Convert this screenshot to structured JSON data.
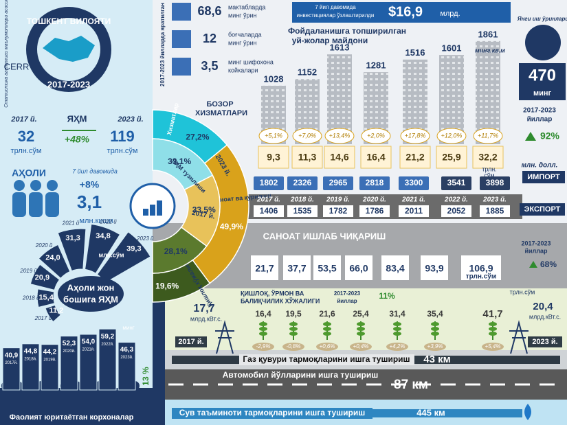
{
  "left": {
    "title": "ТОШКЕНТ ВИЛОЯТИ",
    "period": "2017-2023",
    "logo": "CERR",
    "source": "Статистика агентлиги маълумотлари асосида",
    "grp": {
      "label": "ЯҲМ",
      "year_start": "2017 й.",
      "year_end": "2023 й.",
      "value_start": "32",
      "unit_start": "трлн.сўм",
      "growth": "+48%",
      "value_end": "119",
      "unit_end": "трлн.сўм"
    },
    "population": {
      "label": "АҲОЛИ",
      "note": "7 йил давомида",
      "growth": "+8%",
      "value": "3,1",
      "unit": "млн.киши"
    },
    "per_capita": {
      "title": [
        "Аҳоли жон",
        "бошига ЯҲМ"
      ],
      "unit": "млн.сўм",
      "years": [
        "2017 й",
        "2018 й",
        "2019 й",
        "2020 й",
        "2021 й",
        "2022 й",
        "2023 й"
      ],
      "values": [
        {
          "value": 11.2,
          "label": "11,2"
        },
        {
          "value": 15.4,
          "label": "15,4"
        },
        {
          "value": 20.9,
          "label": "20,9"
        },
        {
          "value": 24.0,
          "label": "24,0"
        },
        {
          "value": 31.3,
          "label": "31,3"
        },
        {
          "value": 34.8,
          "label": "34,8"
        },
        {
          "value": 39.3,
          "label": "39,3"
        }
      ]
    },
    "enterprises": {
      "title": "Фаолият юритаётган корхоналар",
      "unit": "минг",
      "growth": "13 %",
      "years": [
        "2017й.",
        "2018й.",
        "2019й.",
        "2020й.",
        "2021й.",
        "2022й.",
        "2023й."
      ],
      "values": [
        {
          "value": 40.9,
          "label": "40,9"
        },
        {
          "value": 44.8,
          "label": "44,8"
        },
        {
          "value": 44.2,
          "label": "44,2"
        },
        {
          "value": 52.3,
          "label": "52,3"
        },
        {
          "value": 54.0,
          "label": "54,0"
        },
        {
          "value": 59.2,
          "label": "59,2"
        },
        {
          "value": 46.3,
          "label": "46,3"
        }
      ]
    }
  },
  "structure": {
    "title": "ЯҲМ тузилиши",
    "outer_label": "2023 й.",
    "inner_label": "2017 й.",
    "categories": [
      "Хизматлар",
      "Саноат ва қурилиш",
      "Қишлоқ хўжалиги"
    ],
    "y2023": [
      {
        "value": 27.2,
        "label": "27,2%"
      },
      {
        "value": 49.9,
        "label": "49,9%"
      },
      {
        "value": 19.6,
        "label": "19,6%"
      }
    ],
    "y2017": [
      {
        "value": 33.1,
        "label": "33,1%"
      },
      {
        "value": 33.5,
        "label": "33,5%"
      },
      {
        "value": 28.1,
        "label": "28,1%"
      }
    ]
  },
  "social": {
    "note": "2017-2023 йилларда яратилган",
    "items": [
      {
        "value": "68,6",
        "text": [
          "мактабларда",
          "минг ўрин"
        ]
      },
      {
        "value": "12",
        "text": [
          "боғчаларда",
          "минг ўрин"
        ]
      },
      {
        "value": "3,5",
        "text": [
          "минг шифохона",
          "койкалари"
        ]
      }
    ]
  },
  "investment": {
    "note": [
      "7 йил давомида",
      "инвестициялар ўзлаштирилди"
    ],
    "value": "$16,9",
    "unit": "млрд."
  },
  "housing": {
    "title": [
      "Фойдаланишга топширилган",
      "уй-жолар майдони"
    ],
    "unit": "минг.кв.м",
    "values": [
      1028,
      1152,
      1613,
      1281,
      1516,
      1601,
      1861
    ]
  },
  "services": {
    "title": [
      "БОЗОР",
      "ХИЗМАТЛАРИ"
    ],
    "unit": [
      "трлн.",
      "сўм"
    ],
    "values": [
      "9,3",
      "11,3",
      "14,6",
      "16,4",
      "21,2",
      "25,9",
      "32,2"
    ],
    "growth": [
      "+5,1%",
      "+7,0%",
      "+13,4%",
      "+2,0%",
      "+17,8%",
      "+12,0%",
      "+11,7%"
    ]
  },
  "jobs": {
    "title": "Янги иш ўринлари",
    "value": "470",
    "unit": "минг",
    "period": [
      "2017-2023",
      "йиллар"
    ],
    "growth": "92%"
  },
  "trade": {
    "unit": "млн. долл.",
    "years": [
      "2017 й.",
      "2018 й.",
      "2019 й.",
      "2020 й.",
      "2021 й.",
      "2022 й.",
      "2023 й."
    ],
    "import_label": "ИМПОРТ",
    "import": [
      "1802",
      "2326",
      "2965",
      "2818",
      "3300",
      "3541",
      "3898"
    ],
    "export_label": "ЭКСПОРТ",
    "export": [
      "1406",
      "1535",
      "1782",
      "1786",
      "2011",
      "2052",
      "1885"
    ]
  },
  "industry": {
    "title": "САНОАТ ИШЛАБ ЧИҚАРИШ",
    "values": [
      "21,7",
      "37,7",
      "53,5",
      "66,0",
      "83,4",
      "93,9",
      "106,9"
    ],
    "unit": "трлн.сўм",
    "period": [
      "2017-2023",
      "йиллар"
    ],
    "growth": "68%"
  },
  "agriculture": {
    "title": [
      "ҚИШЛОҚ, ЎРМОН ВА",
      "БАЛИҚЧИЛИК ХЎЖАЛИГИ"
    ],
    "period": [
      "2017-2023",
      "йиллар"
    ],
    "growth": "11%",
    "values": [
      "16,4",
      "19,5",
      "21,6",
      "25,4",
      "31,4",
      "35,4",
      "41,7"
    ],
    "unit": "трлн.сўм",
    "growth_rates": [
      "-2,9%",
      "-0,8%",
      "+0,6%",
      "+0,4%",
      "+4,2%",
      "+3,9%",
      "+5,4%"
    ]
  },
  "electricity": {
    "start": "17,7",
    "end": "20,4",
    "unit": "млрд.кВт.с.",
    "year_start": "2017 й.",
    "year_end": "2023 й."
  },
  "infrastructure": {
    "gas": {
      "label": "Газ қувури тармоқларини ишга тушириш",
      "value": "43 км"
    },
    "road": {
      "label": "Автомобил йўлларини ишга тушириш",
      "value": "87 км"
    },
    "water": {
      "label": "Сув таъминоти тармоқларини ишга тушириш",
      "value": "445 км"
    }
  }
}
